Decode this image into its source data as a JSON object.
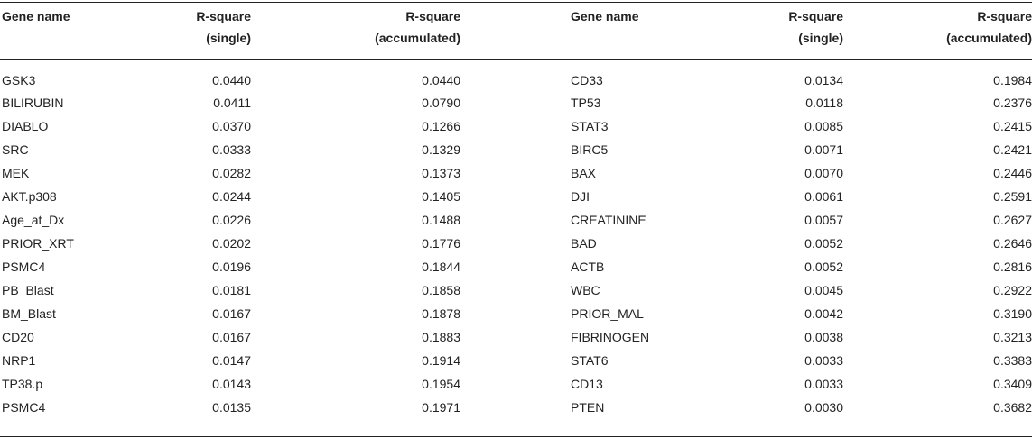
{
  "headers": {
    "gene_name": "Gene name",
    "single_line1": "R-square",
    "single_line2": "(single)",
    "accum_line1": "R-square",
    "accum_line2": "(accumulated)"
  },
  "left": [
    {
      "gene": "GSK3",
      "single": "0.0440",
      "accum": "0.0440"
    },
    {
      "gene": "BILIRUBIN",
      "single": "0.0411",
      "accum": "0.0790"
    },
    {
      "gene": "DIABLO",
      "single": "0.0370",
      "accum": "0.1266"
    },
    {
      "gene": "SRC",
      "single": "0.0333",
      "accum": "0.1329"
    },
    {
      "gene": "MEK",
      "single": "0.0282",
      "accum": "0.1373"
    },
    {
      "gene": "AKT.p308",
      "single": "0.0244",
      "accum": "0.1405"
    },
    {
      "gene": "Age_at_Dx",
      "single": "0.0226",
      "accum": "0.1488"
    },
    {
      "gene": "PRIOR_XRT",
      "single": "0.0202",
      "accum": "0.1776"
    },
    {
      "gene": "PSMC4",
      "single": "0.0196",
      "accum": "0.1844"
    },
    {
      "gene": "PB_Blast",
      "single": "0.0181",
      "accum": "0.1858"
    },
    {
      "gene": "BM_Blast",
      "single": "0.0167",
      "accum": "0.1878"
    },
    {
      "gene": "CD20",
      "single": "0.0167",
      "accum": "0.1883"
    },
    {
      "gene": "NRP1",
      "single": "0.0147",
      "accum": "0.1914"
    },
    {
      "gene": "TP38.p",
      "single": "0.0143",
      "accum": "0.1954"
    },
    {
      "gene": "PSMC4",
      "single": "0.0135",
      "accum": "0.1971"
    }
  ],
  "right": [
    {
      "gene": "CD33",
      "single": "0.0134",
      "accum": "0.1984"
    },
    {
      "gene": "TP53",
      "single": "0.0118",
      "accum": "0.2376"
    },
    {
      "gene": "STAT3",
      "single": "0.0085",
      "accum": "0.2415"
    },
    {
      "gene": "BIRC5",
      "single": "0.0071",
      "accum": "0.2421"
    },
    {
      "gene": "BAX",
      "single": "0.0070",
      "accum": "0.2446"
    },
    {
      "gene": "DJI",
      "single": "0.0061",
      "accum": "0.2591"
    },
    {
      "gene": "CREATININE",
      "single": "0.0057",
      "accum": "0.2627"
    },
    {
      "gene": "BAD",
      "single": "0.0052",
      "accum": "0.2646"
    },
    {
      "gene": "ACTB",
      "single": "0.0052",
      "accum": "0.2816"
    },
    {
      "gene": "WBC",
      "single": "0.0045",
      "accum": "0.2922"
    },
    {
      "gene": "PRIOR_MAL",
      "single": "0.0042",
      "accum": "0.3190"
    },
    {
      "gene": "FIBRINOGEN",
      "single": "0.0038",
      "accum": "0.3213"
    },
    {
      "gene": "STAT6",
      "single": "0.0033",
      "accum": "0.3383"
    },
    {
      "gene": "CD13",
      "single": "0.0033",
      "accum": "0.3409"
    },
    {
      "gene": "PTEN",
      "single": "0.0030",
      "accum": "0.3682"
    }
  ]
}
